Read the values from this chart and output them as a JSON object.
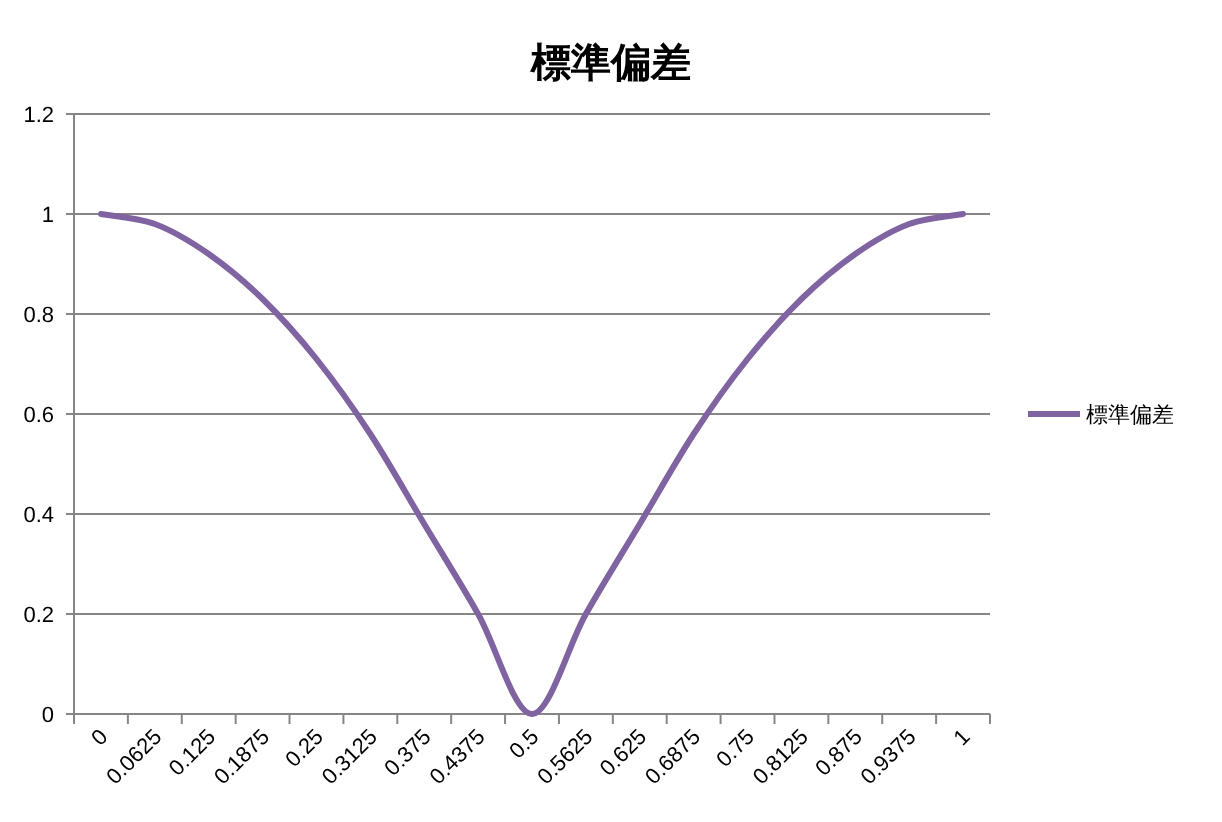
{
  "chart_data": {
    "type": "line",
    "title": "標準偏差",
    "categories": [
      "0",
      "0.0625",
      "0.125",
      "0.1875",
      "0.25",
      "0.3125",
      "0.375",
      "0.4375",
      "0.5",
      "0.5625",
      "0.625",
      "0.6875",
      "0.75",
      "0.8125",
      "0.875",
      "0.9375",
      "1"
    ],
    "series": [
      {
        "name": "標準偏差",
        "color": "#8064a2",
        "values": [
          1,
          0.98,
          0.92,
          0.83,
          0.71,
          0.56,
          0.38,
          0.2,
          0,
          0.2,
          0.38,
          0.56,
          0.71,
          0.83,
          0.92,
          0.98,
          1
        ]
      }
    ],
    "ylim": [
      0,
      1.2
    ],
    "yticks": [
      0,
      0.2,
      0.4,
      0.6,
      0.8,
      1,
      1.2
    ],
    "grid": "y",
    "legend": "right"
  }
}
